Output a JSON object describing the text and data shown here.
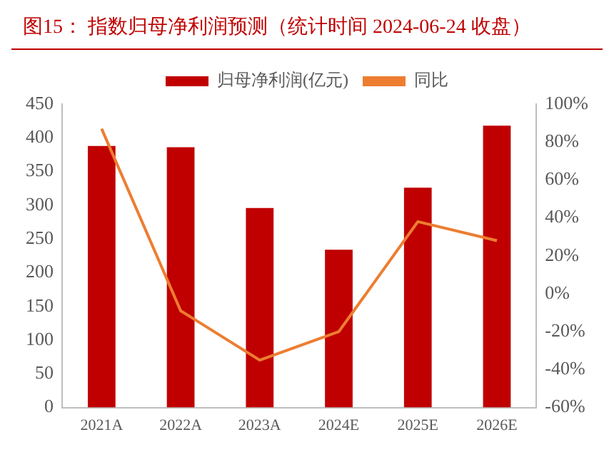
{
  "chart_data": {
    "type": "bar",
    "title": "图15：  指数归母净利润预测（统计时间 2024-06-24 收盘）",
    "categories": [
      "2021A",
      "2022A",
      "2023A",
      "2024E",
      "2025E",
      "2026E"
    ],
    "series": [
      {
        "name": "归母净利润(亿元)",
        "color": "#c00000",
        "values": [
          388,
          386,
          296,
          234,
          326,
          418
        ]
      },
      {
        "name": "同比",
        "type": "line",
        "axis": "y2",
        "color": "#ed7d31",
        "values": [
          87,
          -9,
          -35,
          -20,
          38,
          28
        ]
      }
    ],
    "ylim": [
      0,
      450
    ],
    "yticks": [
      0,
      50,
      100,
      150,
      200,
      250,
      300,
      350,
      400,
      450
    ],
    "y2lim": [
      -60,
      100
    ],
    "y2ticks": [
      {
        "value": -60,
        "label": "-60%"
      },
      {
        "value": -40,
        "label": "-40%"
      },
      {
        "value": -20,
        "label": "-20%"
      },
      {
        "value": 0,
        "label": "0%"
      },
      {
        "value": 20,
        "label": "20%"
      },
      {
        "value": 40,
        "label": "40%"
      },
      {
        "value": 60,
        "label": "60%"
      },
      {
        "value": 80,
        "label": "80%"
      },
      {
        "value": 100,
        "label": "100%"
      }
    ],
    "legend": "top",
    "grid": false,
    "marker": "none"
  }
}
